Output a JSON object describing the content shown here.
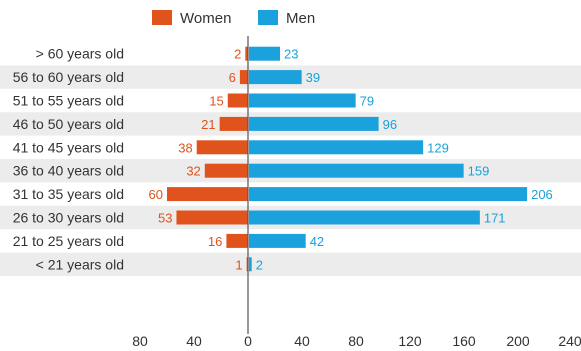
{
  "chart_data": {
    "type": "bar",
    "orientation": "horizontal",
    "layout": "diverging",
    "categories": [
      "> 60 years old",
      "56 to 60 years old",
      "51 to 55 years old",
      "46 to 50 years old",
      "41 to 45 years old",
      "36 to 40 years old",
      "31 to 35 years old",
      "26 to 30 years old",
      "21 to 25 years old",
      "< 21 years old"
    ],
    "series": [
      {
        "name": "Women",
        "color": "#e0531c",
        "values": [
          2,
          6,
          15,
          21,
          38,
          32,
          60,
          53,
          16,
          1
        ]
      },
      {
        "name": "Men",
        "color": "#1ba1dc",
        "values": [
          23,
          39,
          79,
          96,
          129,
          159,
          206,
          171,
          42,
          2
        ]
      }
    ],
    "x_ticks": [
      "80",
      "40",
      "0",
      "40",
      "80",
      "120",
      "160",
      "200",
      "240"
    ],
    "legend_position": "top",
    "grid": "alternating row bands",
    "title": "",
    "xlabel": "",
    "ylabel": ""
  }
}
